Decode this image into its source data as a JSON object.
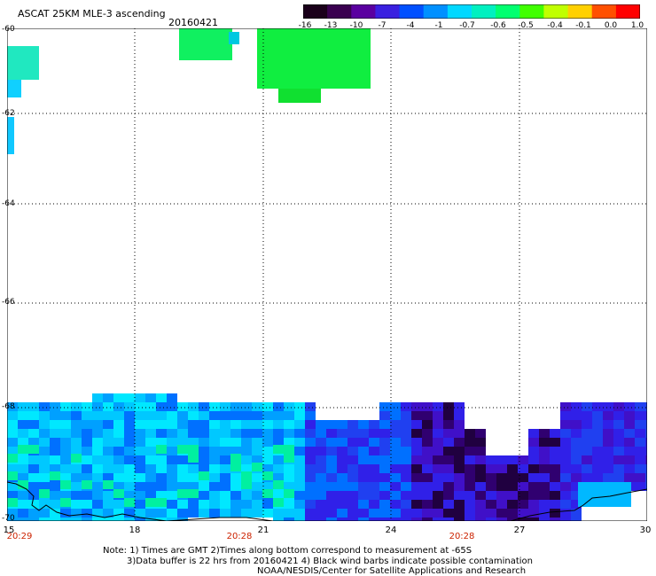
{
  "header": {
    "title": "ASCAT 25KM MLE-3 ascending",
    "date": "20160421"
  },
  "colorbar": {
    "labels": [
      "-16",
      "-13",
      "-10",
      "-7",
      "-4",
      "-1",
      "-0.7",
      "-0.6",
      "-0.5",
      "-0.4",
      "-0.1",
      "0.0",
      "1.0"
    ],
    "colors": [
      "#1a001a",
      "#3a0050",
      "#5a00a0",
      "#3a20e0",
      "#0050ff",
      "#0090ff",
      "#00d8ff",
      "#00f0c0",
      "#00ff70",
      "#40ff00",
      "#c0ff00",
      "#ffd000",
      "#ff5000",
      "#ff0000"
    ]
  },
  "axes": {
    "lat_labels": [
      "-60",
      "-62",
      "-64",
      "-66",
      "-68",
      "-70"
    ],
    "lon_labels": [
      "15",
      "18",
      "21",
      "24",
      "27",
      "30"
    ],
    "time_labels": [
      "20:29",
      "20:28",
      "20:28"
    ]
  },
  "notes": {
    "line1": "Note: 1) Times are GMT 2)Times along bottom correspond to measurement at -65S",
    "line2": "3)Data buffer is 22 hrs from 20160421 4) Black wind barbs indicate possible contamination",
    "line3": "NOAA/NESDIS/Center for Satellite Applications and Research"
  },
  "colors": {
    "grid": "#000000",
    "time_text": "#cc2200",
    "coastline": "#000000"
  }
}
